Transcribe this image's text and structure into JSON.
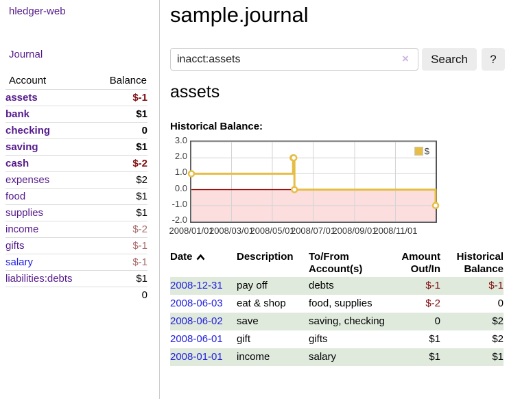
{
  "brand": "hledger-web",
  "nav": {
    "journal": "Journal"
  },
  "colors": {
    "visited_link": "#551a8b",
    "unvisited_link": "#2222dd",
    "negative_strong": "#7f0d0d",
    "negative_muted": "#a86a6a",
    "row_green": "#dfeadd",
    "button_bg": "#ececec"
  },
  "sidebar_table": {
    "header_account": "Account",
    "header_balance": "Balance",
    "rows": [
      {
        "account": "assets",
        "indent": 1,
        "balance": "$-1",
        "bold": true,
        "balance_style": "neg-strong"
      },
      {
        "account": "bank",
        "indent": 2,
        "balance": "$1",
        "bold": true,
        "balance_style": "pos"
      },
      {
        "account": "checking",
        "indent": 3,
        "balance": "0",
        "bold": true,
        "balance_style": "pos"
      },
      {
        "account": "saving",
        "indent": 3,
        "balance": "$1",
        "bold": true,
        "balance_style": "pos"
      },
      {
        "account": "cash",
        "indent": 2,
        "balance": "$-2",
        "bold": true,
        "balance_style": "neg-strong"
      },
      {
        "account": "expenses",
        "indent": 1,
        "balance": "$2",
        "bold": false,
        "balance_style": "pos"
      },
      {
        "account": "food",
        "indent": 2,
        "balance": "$1",
        "bold": false,
        "balance_style": "pos"
      },
      {
        "account": "supplies",
        "indent": 2,
        "balance": "$1",
        "bold": false,
        "balance_style": "pos"
      },
      {
        "account": "income",
        "indent": 1,
        "balance": "$-2",
        "bold": false,
        "balance_style": "neg-muted"
      },
      {
        "account": "gifts",
        "indent": 2,
        "balance": "$-1",
        "bold": false,
        "balance_style": "neg-muted"
      },
      {
        "account": "salary",
        "indent": 2,
        "balance": "$-1",
        "bold": false,
        "balance_style": "neg-muted",
        "link_style": "unvisited"
      },
      {
        "account": "liabilities:debts",
        "indent": 1,
        "balance": "$1",
        "bold": false,
        "balance_style": "pos"
      }
    ],
    "total": "0"
  },
  "main": {
    "title": "sample.journal",
    "account_title": "assets",
    "chart_heading": "Historical Balance:"
  },
  "search": {
    "value": "inacct:assets",
    "clear_label": "×",
    "button": "Search",
    "help": "?"
  },
  "chart_data": {
    "type": "line",
    "step": true,
    "title": "",
    "xlabel": "",
    "ylabel": "",
    "series": [
      {
        "name": "$",
        "color": "#e6bd45",
        "x": [
          "2008-01-01",
          "2008-06-01",
          "2008-06-02",
          "2008-06-03",
          "2008-12-31"
        ],
        "y": [
          1,
          2,
          2,
          0,
          -1
        ]
      }
    ],
    "x_range": [
      "2008-01-01",
      "2008-12-31"
    ],
    "ylim": [
      -2,
      3
    ],
    "x_ticks": [
      "2008/01/01",
      "2008/03/01",
      "2008/05/01",
      "2008/07/01",
      "2008/09/01",
      "2008/11/01"
    ],
    "y_ticks": [
      3,
      2,
      1,
      0,
      -1,
      -2
    ],
    "grid": true,
    "negative_fill": "#fcdede",
    "zero_line": "#990000",
    "grid_color": "#d4d4d4",
    "legend": {
      "label": "$",
      "position": "top-right"
    }
  },
  "register": {
    "headers": {
      "date": "Date",
      "description": "Description",
      "tofrom": "To/From Account(s)",
      "amount": "Amount Out/In",
      "balance": "Historical Balance"
    },
    "rows": [
      {
        "date": "2008-12-31",
        "description": "pay off",
        "accounts": "debts",
        "amount": "$-1",
        "amount_neg": true,
        "balance": "$-1",
        "balance_neg": true
      },
      {
        "date": "2008-06-03",
        "description": "eat & shop",
        "accounts": "food, supplies",
        "amount": "$-2",
        "amount_neg": true,
        "balance": "0",
        "balance_neg": false
      },
      {
        "date": "2008-06-02",
        "description": "save",
        "accounts": "saving, checking",
        "amount": "0",
        "amount_neg": false,
        "balance": "$2",
        "balance_neg": false
      },
      {
        "date": "2008-06-01",
        "description": "gift",
        "accounts": "gifts",
        "amount": "$1",
        "amount_neg": false,
        "balance": "$2",
        "balance_neg": false
      },
      {
        "date": "2008-01-01",
        "description": "income",
        "accounts": "salary",
        "amount": "$1",
        "amount_neg": false,
        "balance": "$1",
        "balance_neg": false
      }
    ]
  }
}
